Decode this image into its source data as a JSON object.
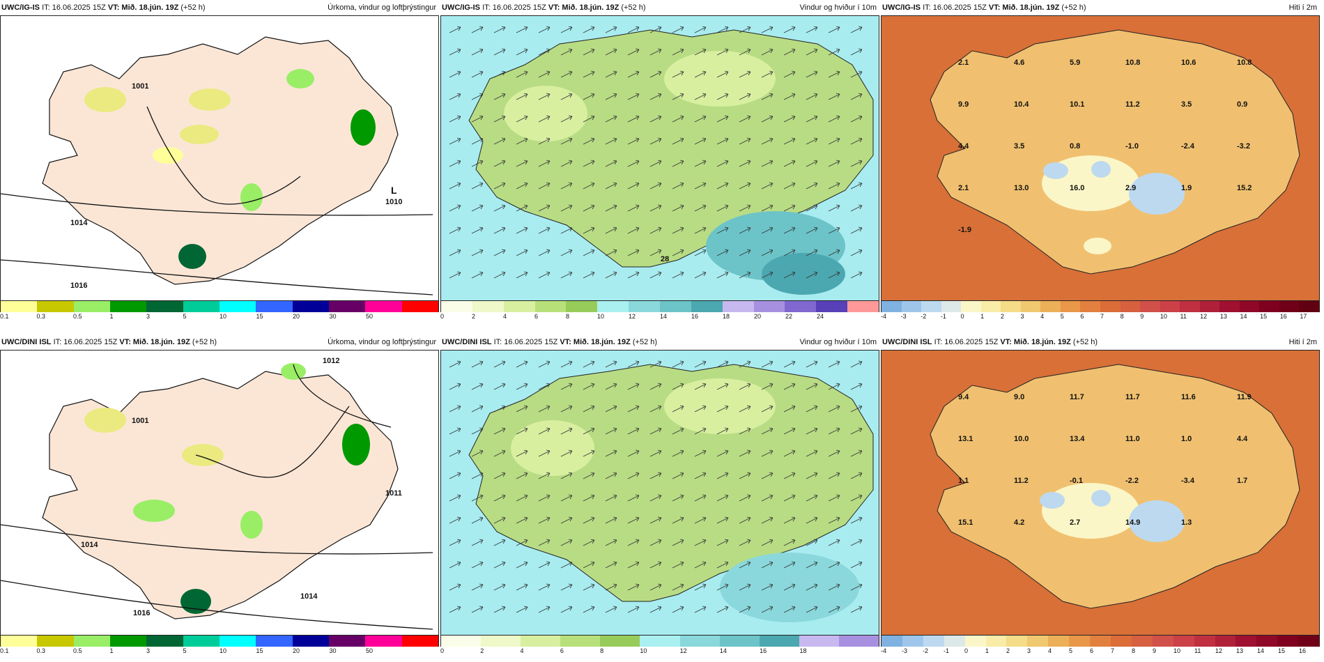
{
  "rows": [
    {
      "model": "UWC/IG-IS",
      "it": "IT: 16.06.2025 15Z",
      "vt": "VT: Mið. 18.jún. 19Z",
      "lead": "(+52 h)",
      "precip_title": "Úrkoma, vindur og loftþrýstingur",
      "wind_title": "Vindur og hviður í 10m",
      "temp_title": "Hiti í 2m",
      "pressure_labels": [
        "1014",
        "1016",
        "1010",
        "1001",
        "L"
      ],
      "temp_labels": [
        "2.1",
        "4.6",
        "5.9",
        "10.8",
        "10.6",
        "10.8",
        "9.9",
        "10.4",
        "10.1",
        "11.2",
        "3.5",
        "0.9",
        "4.4",
        "3.5",
        "0.8",
        "-1.0",
        "-2.4",
        "-3.2",
        "2.1",
        "13.0",
        "16.0",
        "2.9",
        "1.9",
        "15.2",
        "-1.9"
      ],
      "wind_label": "28"
    },
    {
      "model": "UWC/DINI ISL",
      "it": "IT: 16.06.2025 15Z",
      "vt": "VT: Mið. 18.jún. 19Z",
      "lead": "(+52 h)",
      "precip_title": "Úrkoma, vindur og loftþrýstingur",
      "wind_title": "Vindur og hviður í 10m",
      "temp_title": "Hiti í 2m",
      "pressure_labels": [
        "1012",
        "1014",
        "1016",
        "1011",
        "1001",
        "1014"
      ],
      "temp_labels": [
        "9.4",
        "9.0",
        "11.7",
        "11.7",
        "11.6",
        "11.9",
        "13.1",
        "10.0",
        "13.4",
        "11.0",
        "1.0",
        "4.4",
        "1.1",
        "11.2",
        "-0.1",
        "-2.2",
        "-3.4",
        "1.7",
        "15.1",
        "4.2",
        "2.7",
        "14.9",
        "1.3"
      ],
      "wind_label": ""
    }
  ],
  "precip_scale": {
    "colors": [
      "#ffff99",
      "#c8c800",
      "#99ee66",
      "#009900",
      "#006633",
      "#00cc99",
      "#00ffff",
      "#3366ff",
      "#000099",
      "#660066",
      "#ff0099",
      "#ff0000"
    ],
    "ticks": [
      "0.1",
      "0.3",
      "0.5",
      "1",
      "3",
      "5",
      "10",
      "15",
      "20",
      "30",
      "50"
    ]
  },
  "wind_scale_top": {
    "colors": [
      "#fafde8",
      "#eef8c8",
      "#d8efa0",
      "#b8e07a",
      "#98cc5a",
      "#aaf0f0",
      "#8ad8dc",
      "#6cc4c8",
      "#4ca8b0",
      "#c8b8f0",
      "#a890e0",
      "#8068d0",
      "#5840b8",
      "#ff9999"
    ],
    "ticks": [
      "0",
      "2",
      "4",
      "6",
      "8",
      "10",
      "12",
      "14",
      "16",
      "18",
      "20",
      "22",
      "24"
    ]
  },
  "wind_scale_bottom": {
    "colors": [
      "#fafde8",
      "#eef8c8",
      "#d8efa0",
      "#b8e07a",
      "#98cc5a",
      "#aaf0f0",
      "#8ad8dc",
      "#6cc4c8",
      "#4ca8b0",
      "#c8b8f0",
      "#a890e0"
    ],
    "ticks": [
      "0",
      "2",
      "4",
      "6",
      "8",
      "10",
      "12",
      "14",
      "16",
      "18"
    ]
  },
  "temp_scale_top": {
    "colors": [
      "#7fb2e0",
      "#9ec6ea",
      "#bcd9f0",
      "#dde9e8",
      "#fbf6c8",
      "#f8eca8",
      "#f4dc88",
      "#f0c870",
      "#ecb058",
      "#e89848",
      "#e28040",
      "#dc6c38",
      "#d66040",
      "#d2504a",
      "#cc4048",
      "#c03040",
      "#b02038",
      "#a01030",
      "#900828",
      "#800020",
      "#700018",
      "#600010"
    ],
    "ticks": [
      "-4",
      "-3",
      "-2",
      "-1",
      "0",
      "1",
      "2",
      "3",
      "4",
      "5",
      "6",
      "7",
      "8",
      "9",
      "10",
      "11",
      "12",
      "13",
      "14",
      "15",
      "16",
      "17"
    ]
  },
  "temp_scale_bottom": {
    "colors": [
      "#7fb2e0",
      "#9ec6ea",
      "#bcd9f0",
      "#dde9e8",
      "#fbf6c8",
      "#f8eca8",
      "#f4dc88",
      "#f0c870",
      "#ecb058",
      "#e89848",
      "#e28040",
      "#dc6c38",
      "#d66040",
      "#d2504a",
      "#cc4048",
      "#c03040",
      "#b02038",
      "#a01030",
      "#900828",
      "#800020",
      "#700018"
    ],
    "ticks": [
      "-4",
      "-3",
      "-2",
      "-1",
      "0",
      "1",
      "2",
      "3",
      "4",
      "5",
      "6",
      "7",
      "8",
      "9",
      "10",
      "11",
      "12",
      "13",
      "14",
      "15",
      "16"
    ]
  },
  "map_colors": {
    "precip_land": "#fbe6d6",
    "precip_sea": "#ffffff",
    "wind_land": "#b8dc84",
    "wind_sea": "#a8ecf0",
    "temp_land": "#f0c070",
    "temp_sea": "#d87038"
  }
}
